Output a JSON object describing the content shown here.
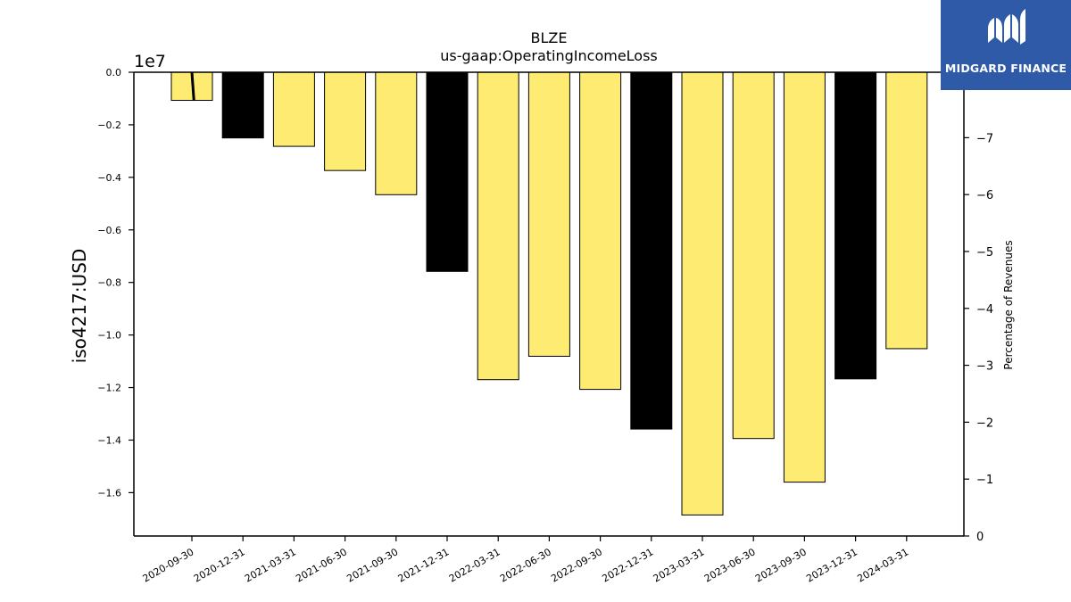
{
  "logo": {
    "text": "MIDGARD FINANCE",
    "icon": "midgard-logo-icon",
    "background": "#2e5aa8"
  },
  "chart_data": {
    "type": "bar",
    "title": "BLZE",
    "subtitle": "us-gaap:OperatingIncomeLoss",
    "ylabel": "iso4217:USD",
    "y_offset_label": "1e7",
    "y2label": "Percentage of Revenues",
    "categories": [
      "2020-09-30",
      "2020-12-31",
      "2021-03-31",
      "2021-06-30",
      "2021-09-30",
      "2021-12-31",
      "2022-03-31",
      "2022-06-30",
      "2022-09-30",
      "2022-12-31",
      "2023-03-31",
      "2023-06-30",
      "2023-09-30",
      "2023-12-31",
      "2024-03-31"
    ],
    "values": [
      -1070000,
      -2500000,
      -2820000,
      -3740000,
      -4660000,
      -7580000,
      -11700000,
      -10810000,
      -12070000,
      -13580000,
      -16850000,
      -13940000,
      -15600000,
      -11670000,
      -10520000
    ],
    "fiscal_year_end": [
      false,
      true,
      false,
      false,
      false,
      true,
      false,
      false,
      false,
      true,
      false,
      false,
      false,
      true,
      false
    ],
    "colors": {
      "quarter": "#fdeb72",
      "year_end": "#000000"
    },
    "ylim": [
      -17650000,
      0
    ],
    "y_ticks": [
      0.0,
      -0.2,
      -0.4,
      -0.6,
      -0.8,
      -1.0,
      -1.2,
      -1.4,
      -1.6
    ],
    "y2lim": [
      0,
      -8.15
    ],
    "y2_ticks": [
      0,
      -1,
      -2,
      -3,
      -4,
      -5,
      -6,
      -7
    ],
    "pct_line": {
      "x_index": [
        0,
        0.04
      ],
      "values": [
        -8.15,
        -7.65
      ]
    },
    "grid": false,
    "legend": "none"
  }
}
